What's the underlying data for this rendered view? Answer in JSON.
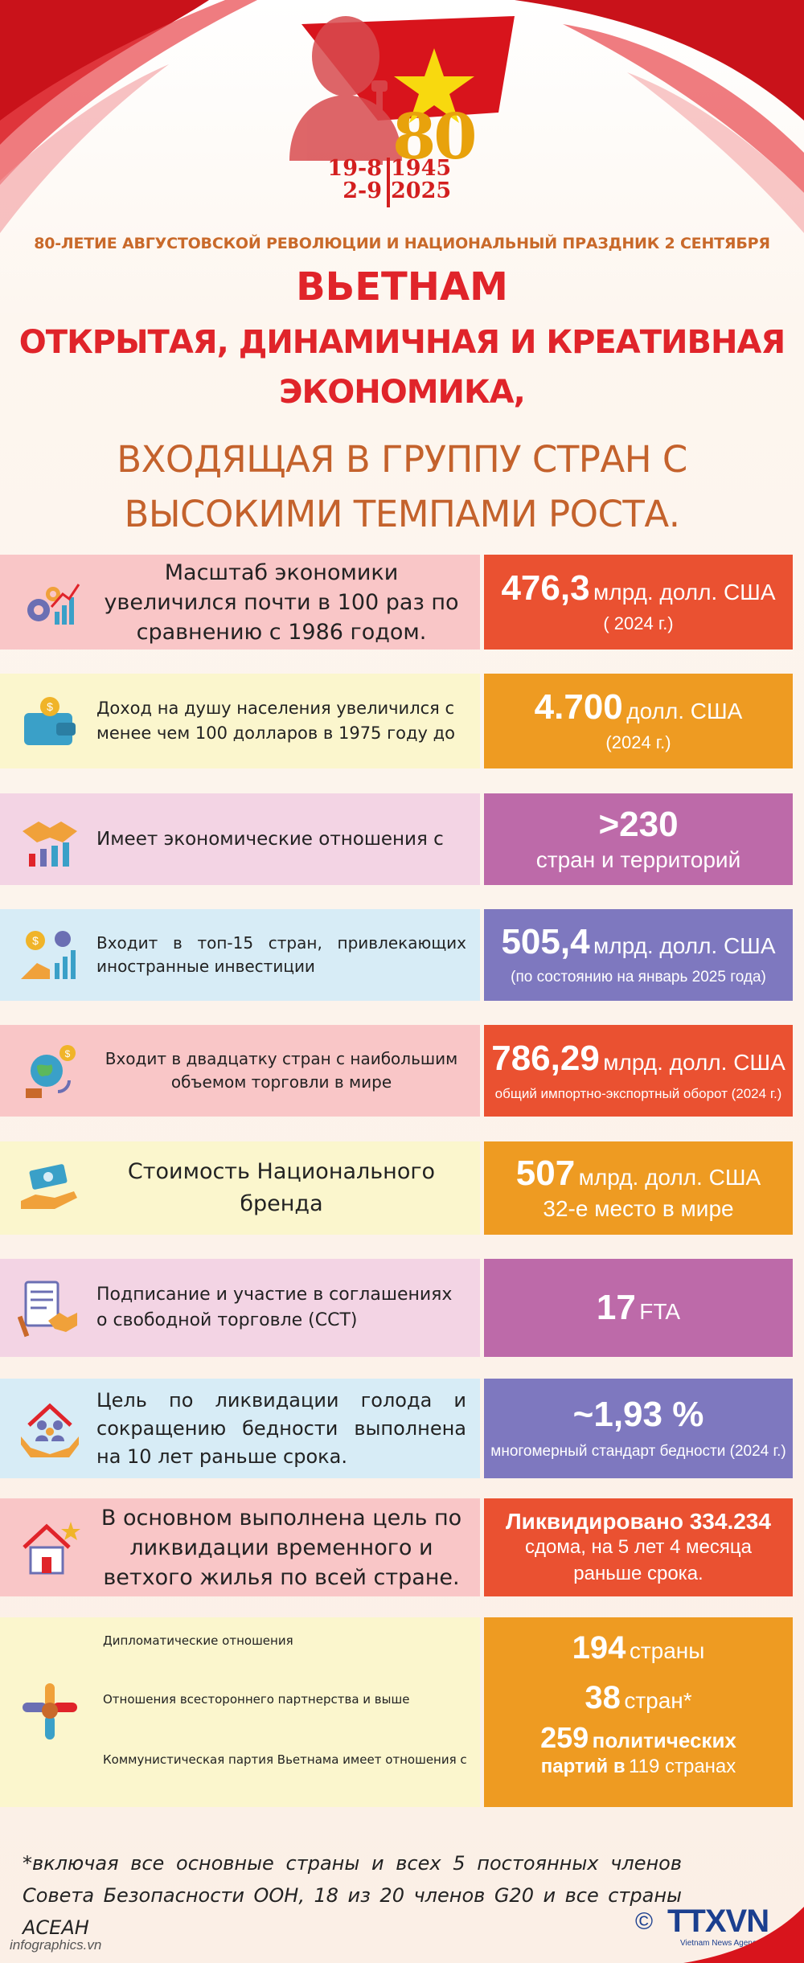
{
  "header": {
    "anniversary_number": "80",
    "date_left_1": "19-8",
    "date_left_2": "2-9",
    "year_1": "1945",
    "year_2": "2025",
    "subtitle": "80-ЛЕТИЕ АВГУСТОВСКОЙ РЕВОЛЮЦИИ И НАЦИОНАЛЬНЫЙ ПРАЗДНИК 2 СЕНТЯБРЯ",
    "title_line1": "ВЬЕТНАМ",
    "title_line2": "ОТКРЫТАЯ, ДИНАМИЧНАЯ И КРЕАТИВНАЯ",
    "title_line3": "ЭКОНОМИКА,",
    "title_line4": "ВХОДЯЩАЯ В ГРУППУ СТРАН С",
    "title_line5": "ВЫСОКИМИ ТЕМПАМИ РОСТА."
  },
  "rows": [
    {
      "icon": "gears-chart-icon",
      "desc": "Масштаб экономики увеличился почти в 100 раз по сравнению с 1986 годом.",
      "big": "476,3",
      "unit": "млрд. долл. США",
      "note": "( 2024 г.)"
    },
    {
      "icon": "wallet-coin-icon",
      "desc": "Доход на душу населения увеличился с менее чем 100 долларов в 1975 году до",
      "big": "4.700",
      "unit": "долл. США",
      "note": "(2024 г.)"
    },
    {
      "icon": "handshake-chart-icon",
      "desc": "Имеет экономические отношения с",
      "big": ">230",
      "unit": "",
      "note": "стран и территорий"
    },
    {
      "icon": "investment-chart-icon",
      "desc": "Входит в топ-15 стран, привлекающих иностранные инвестиции",
      "big": "505,4",
      "unit": "млрд. долл. США",
      "note": "(по состоянию на январь 2025 года)"
    },
    {
      "icon": "globe-trade-icon",
      "desc": "Входит в двадцатку стран с наибольшим объемом торговли в мире",
      "big": "786,29",
      "unit": "млрд. долл. США",
      "note": "общий импортно-экспортный оборот (2024 г.)"
    },
    {
      "icon": "money-hand-icon",
      "desc": "Стоимость Национального бренда",
      "big": "507",
      "unit": "млрд. долл. США",
      "note": "32-е место в мире"
    },
    {
      "icon": "document-handshake-icon",
      "desc": "Подписание и участие в соглашениях о свободной торговле (ССТ)",
      "big": "17",
      "unit": "FTA",
      "note": ""
    },
    {
      "icon": "family-hands-icon",
      "desc": "Цель по ликвидации голода и сокращению бедности выполнена на 10 лет раньше срока.",
      "big": "~1,93 %",
      "unit": "",
      "note": "многомерный стандарт бедности (2024 г.)"
    },
    {
      "icon": "house-star-icon",
      "desc": "В основном выполнена цель по ликвидации временного и ветхого жилья по всей стране.",
      "big": "Ликвидировано 334.234",
      "unit": "",
      "note": "сдома, на 5 лет 4 месяца раньше срока."
    }
  ],
  "last_row": {
    "icon": "joined-hands-icon",
    "label_1": "Дипломатические отношения",
    "label_2": "Отношения всестороннего партнерства и выше",
    "label_3": "Коммунистическая партия Вьетнама имеет отношения с",
    "value_1_big": "194",
    "value_1_unit": "страны",
    "value_2_big": "38",
    "value_2_unit": "стран*",
    "value_3_big": "259",
    "value_3_bold": "политических",
    "value_3_line2a": "партий в",
    "value_3_line2b": "119 странах"
  },
  "footnote": "*включая все основные страны и всех 5 постоянных членов Совета Безопасности ООН, 18 из 20 членов G20 и все страны АСЕАН",
  "site": "infographics.vn",
  "logo": {
    "copyright": "©",
    "name": "TTXVN",
    "sub": "Vietnam News Agency"
  },
  "colors": {
    "red": "#e0242a",
    "orange_text": "#c4622c",
    "gold": "#e8a20c",
    "flag_red": "#d8141c",
    "star_yellow": "#f8d90f"
  }
}
